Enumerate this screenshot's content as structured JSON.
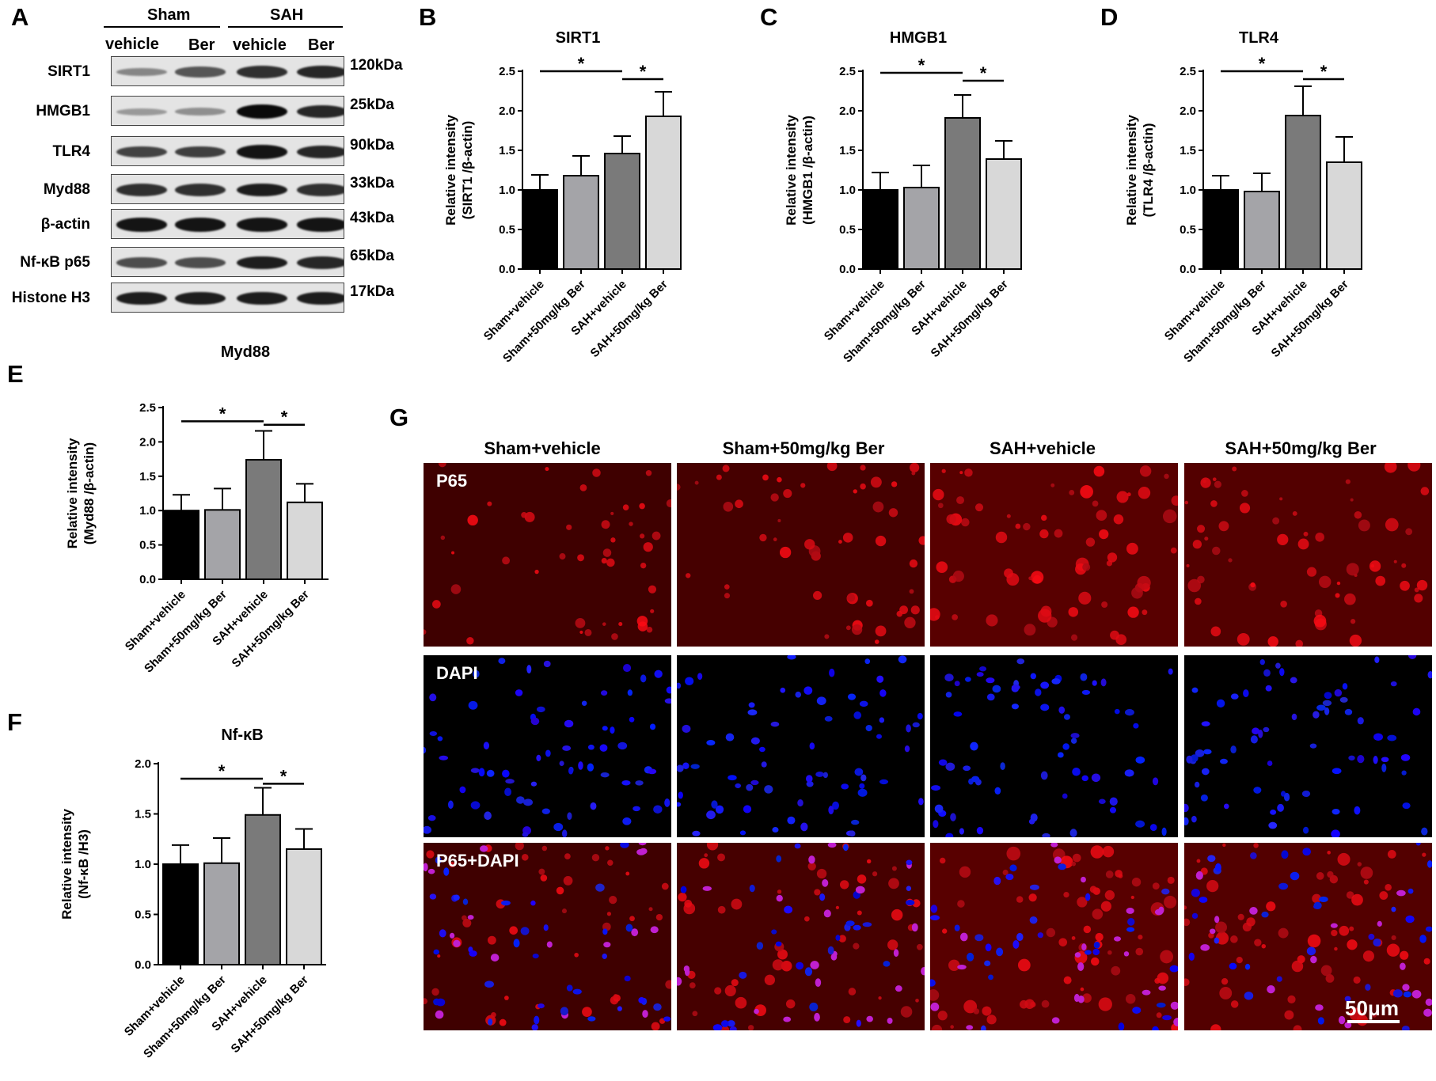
{
  "panel_labels": {
    "A": "A",
    "B": "B",
    "C": "C",
    "D": "D",
    "E": "E",
    "F": "F",
    "G": "G"
  },
  "blot": {
    "group_headers": [
      "Sham",
      "SAH"
    ],
    "lane_labels": [
      "vehicle",
      "Ber",
      "vehicle",
      "Ber"
    ],
    "rows": [
      {
        "name": "SIRT1",
        "kda": "120kDa",
        "intensity": [
          0.35,
          0.6,
          0.8,
          0.85
        ]
      },
      {
        "name": "HMGB1",
        "kda": "25kDa",
        "intensity": [
          0.25,
          0.3,
          1.0,
          0.85
        ]
      },
      {
        "name": "TLR4",
        "kda": "90kDa",
        "intensity": [
          0.7,
          0.72,
          0.95,
          0.85
        ]
      },
      {
        "name": "Myd88",
        "kda": "33kDa",
        "intensity": [
          0.8,
          0.8,
          0.9,
          0.8
        ]
      },
      {
        "name": "β-actin",
        "kda": "43kDa",
        "intensity": [
          0.95,
          0.95,
          0.95,
          0.95
        ]
      },
      {
        "name": "Nf-κB p65",
        "kda": "65kDa",
        "intensity": [
          0.65,
          0.65,
          0.9,
          0.85
        ]
      },
      {
        "name": "Histone H3",
        "kda": "17kDa",
        "intensity": [
          0.9,
          0.9,
          0.9,
          0.9
        ]
      }
    ]
  },
  "chart_data": [
    {
      "panel": "B",
      "type": "bar",
      "title": "SIRT1",
      "ylabel_line1": "Relative intensity",
      "ylabel_line2": "(SIRT1 /β-actin)",
      "categories": [
        "Sham+vehicle",
        "Sham+50mg/kg Ber",
        "SAH+vehicle",
        "SAH+50mg/kg Ber"
      ],
      "values": [
        1.0,
        1.18,
        1.46,
        1.93
      ],
      "errors": [
        0.19,
        0.25,
        0.22,
        0.31
      ],
      "ylim": [
        0,
        2.5
      ],
      "yticks": [
        "0.0",
        "0.5",
        "1.0",
        "1.5",
        "2.0",
        "2.5"
      ],
      "significance": [
        "*",
        "*"
      ],
      "bar_colors": [
        "#000000",
        "#a4a4a8",
        "#7a7a7a",
        "#d8d8d8"
      ]
    },
    {
      "panel": "C",
      "type": "bar",
      "title": "HMGB1",
      "ylabel_line1": "Relative intensity",
      "ylabel_line2": "(HMGB1 /β-actin)",
      "categories": [
        "Sham+vehicle",
        "Sham+50mg/kg Ber",
        "SAH+vehicle",
        "SAH+50mg/kg Ber"
      ],
      "values": [
        1.0,
        1.03,
        1.91,
        1.39
      ],
      "errors": [
        0.22,
        0.28,
        0.29,
        0.23
      ],
      "ylim": [
        0,
        2.5
      ],
      "yticks": [
        "0.0",
        "0.5",
        "1.0",
        "1.5",
        "2.0",
        "2.5"
      ],
      "significance": [
        "*",
        "*"
      ],
      "bar_colors": [
        "#000000",
        "#a4a4a8",
        "#7a7a7a",
        "#d8d8d8"
      ]
    },
    {
      "panel": "D",
      "type": "bar",
      "title": "TLR4",
      "ylabel_line1": "Relative intensity",
      "ylabel_line2": "(TLR4 /β-actin)",
      "categories": [
        "Sham+vehicle",
        "Sham+50mg/kg Ber",
        "SAH+vehicle",
        "SAH+50mg/kg Ber"
      ],
      "values": [
        1.0,
        0.98,
        1.94,
        1.35
      ],
      "errors": [
        0.18,
        0.23,
        0.37,
        0.32
      ],
      "ylim": [
        0,
        2.5
      ],
      "yticks": [
        "0.0",
        "0.5",
        "1.0",
        "1.5",
        "2.0",
        "2.5"
      ],
      "significance": [
        "*",
        "*"
      ],
      "bar_colors": [
        "#000000",
        "#a4a4a8",
        "#7a7a7a",
        "#d8d8d8"
      ]
    },
    {
      "panel": "E",
      "type": "bar",
      "title": "Myd88",
      "ylabel_line1": "Relative intensity",
      "ylabel_line2": "(Myd88 /β-actin)",
      "categories": [
        "Sham+vehicle",
        "Sham+50mg/kg Ber",
        "SAH+vehicle",
        "SAH+50mg/kg Ber"
      ],
      "values": [
        1.0,
        1.01,
        1.74,
        1.12
      ],
      "errors": [
        0.23,
        0.31,
        0.42,
        0.27
      ],
      "ylim": [
        0,
        2.5
      ],
      "yticks": [
        "0.0",
        "0.5",
        "1.0",
        "1.5",
        "2.0",
        "2.5"
      ],
      "significance": [
        "*",
        "*"
      ],
      "bar_colors": [
        "#000000",
        "#a4a4a8",
        "#7a7a7a",
        "#d8d8d8"
      ]
    },
    {
      "panel": "F",
      "type": "bar",
      "title": "Nf-κB",
      "ylabel_line1": "Relative intensity",
      "ylabel_line2": "(Nf-κB /H3)",
      "categories": [
        "Sham+vehicle",
        "Sham+50mg/kg Ber",
        "SAH+vehicle",
        "SAH+50mg/kg Ber"
      ],
      "values": [
        1.0,
        1.01,
        1.49,
        1.15
      ],
      "errors": [
        0.19,
        0.25,
        0.27,
        0.2
      ],
      "ylim": [
        0,
        2.0
      ],
      "yticks": [
        "0.0",
        "0.5",
        "1.0",
        "1.5",
        "2.0"
      ],
      "significance": [
        "*",
        "*"
      ],
      "bar_colors": [
        "#000000",
        "#a4a4a8",
        "#7a7a7a",
        "#d8d8d8"
      ]
    }
  ],
  "micrographs": {
    "columns": [
      "Sham+vehicle",
      "Sham+50mg/kg Ber",
      "SAH+vehicle",
      "SAH+50mg/kg Ber"
    ],
    "rows": [
      "P65",
      "DAPI",
      "P65+DAPI"
    ],
    "scale_bar": "50μm"
  }
}
